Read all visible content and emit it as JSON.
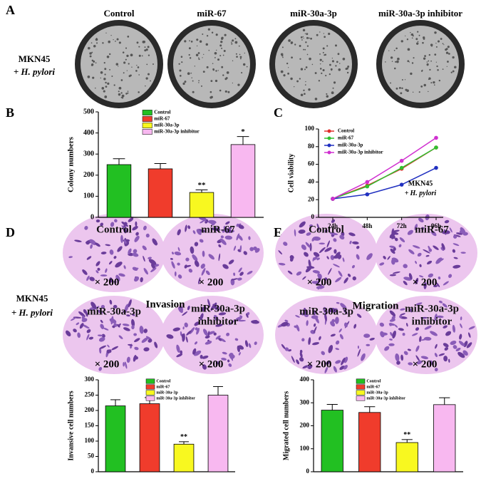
{
  "figure": {
    "panel_labels": [
      "A",
      "B",
      "C",
      "D",
      "E"
    ],
    "dish_titles": [
      "Control",
      "miR-67",
      "miR-30a-3p",
      "miR-30a-3p inhibitor"
    ],
    "row_label_a": {
      "cell": "MKN45",
      "prefix": "+",
      "italic": "H. pylori"
    },
    "row_label_d": {
      "cell": "MKN45",
      "prefix": "+",
      "italic": "H. pylori"
    },
    "invasion": {
      "title": "Invasion",
      "images": [
        [
          "Control"
        ],
        [
          "miR-67"
        ],
        [
          "miR-30a-3p"
        ],
        [
          "miR-30a-3p",
          "inhibitor"
        ]
      ]
    },
    "migration": {
      "title": "Migration",
      "images": [
        [
          "Control"
        ],
        [
          "miR-67"
        ],
        [
          "miR-30a-3p"
        ],
        [
          "miR-30a-3p",
          "inhibitor"
        ]
      ]
    },
    "magnification": "× 200"
  },
  "chart_data": [
    {
      "type": "bar",
      "y_label": "Colony numbers",
      "categories": [
        "Control",
        "miR-67",
        "miR-30a-3p",
        "miR-30a-3p inhibitor"
      ],
      "colors": [
        "#22c022",
        "#f03c2c",
        "#f8f820",
        "#f8b8f0"
      ],
      "values": [
        250,
        230,
        118,
        345
      ],
      "errors": [
        28,
        25,
        12,
        38
      ],
      "annotations": [
        null,
        null,
        "**",
        "*"
      ],
      "ylim": [
        0,
        500
      ],
      "yticks": [
        0,
        100,
        200,
        300,
        400,
        500
      ]
    },
    {
      "type": "line",
      "y_label": "Cell viability",
      "x": [
        "24h",
        "48h",
        "72h",
        "96h"
      ],
      "series": [
        {
          "name": "Control",
          "color": "#e0302c",
          "values": [
            21,
            36,
            55,
            79
          ]
        },
        {
          "name": "miR-67",
          "color": "#30c030",
          "values": [
            21,
            35,
            56,
            79
          ]
        },
        {
          "name": "miR-30a-3p",
          "color": "#2030c0",
          "values": [
            21,
            26,
            37,
            56
          ]
        },
        {
          "name": "miR-30a-3p inhibitor",
          "color": "#d030d0",
          "values": [
            21,
            40,
            64,
            90
          ]
        }
      ],
      "annotation": {
        "cell": "MKN45",
        "prefix": "+",
        "italic": "H. pylori"
      },
      "ylim": [
        0,
        100
      ],
      "yticks": [
        0,
        20,
        40,
        60,
        80,
        100
      ]
    },
    {
      "type": "bar",
      "y_label": "Invansive cell numbers",
      "categories": [
        "Control",
        "miR-67",
        "miR-30a-3p",
        "miR-30a-3p inhibitor"
      ],
      "colors": [
        "#22c022",
        "#f03c2c",
        "#f8f820",
        "#f8b8f0"
      ],
      "values": [
        215,
        222,
        90,
        250
      ],
      "errors": [
        20,
        20,
        8,
        28
      ],
      "annotations": [
        null,
        null,
        "**",
        null
      ],
      "ylim": [
        0,
        300
      ],
      "yticks": [
        0,
        50,
        100,
        150,
        200,
        250,
        300
      ]
    },
    {
      "type": "bar",
      "y_label": "Migrated cell numbers",
      "categories": [
        "Control",
        "miR-67",
        "miR-30a-3p",
        "miR-30a-3p inhibitor"
      ],
      "colors": [
        "#22c022",
        "#f03c2c",
        "#f8f820",
        "#f8b8f0"
      ],
      "values": [
        268,
        258,
        127,
        292
      ],
      "errors": [
        25,
        25,
        13,
        30
      ],
      "annotations": [
        null,
        null,
        "**",
        null
      ],
      "ylim": [
        0,
        400
      ],
      "yticks": [
        0,
        100,
        200,
        300,
        400
      ]
    }
  ]
}
